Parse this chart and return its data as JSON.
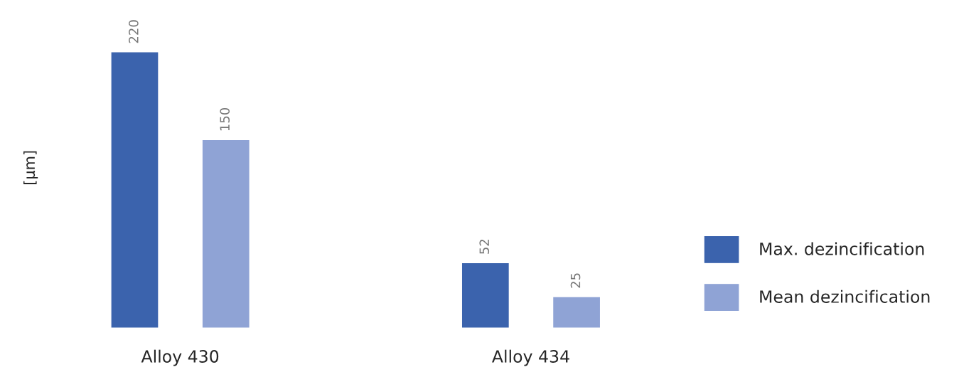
{
  "chart_data": {
    "type": "bar",
    "ylabel": "[µm]",
    "categories": [
      "Alloy 430",
      "Alloy 434"
    ],
    "series": [
      {
        "name": "Max. dezincification",
        "color": "#3b63ad",
        "values": [
          220,
          52
        ]
      },
      {
        "name": "Mean dezincification",
        "color": "#8fa3d5",
        "values": [
          150,
          25
        ]
      }
    ],
    "data_labels": true,
    "legend": "right",
    "grid": false
  }
}
